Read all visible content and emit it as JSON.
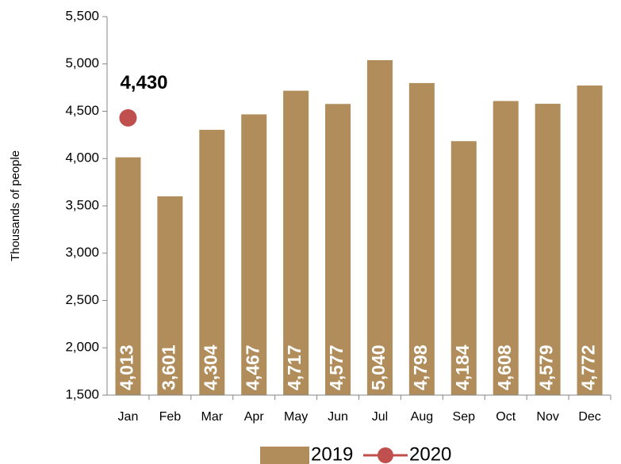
{
  "chart_data": {
    "type": "bar",
    "y_label": "Thousands of people",
    "categories": [
      "Jan",
      "Feb",
      "Mar",
      "Apr",
      "May",
      "Jun",
      "Jul",
      "Aug",
      "Sep",
      "Oct",
      "Nov",
      "Dec"
    ],
    "series": [
      {
        "name": "2019",
        "type": "bar",
        "color": "#b08d5a",
        "values": [
          4013,
          3601,
          4304,
          4467,
          4717,
          4577,
          5040,
          4798,
          4184,
          4608,
          4579,
          4772
        ],
        "value_labels": [
          "4,013",
          "3,601",
          "4,304",
          "4,467",
          "4,717",
          "4,577",
          "5,040",
          "4,798",
          "4,184",
          "4,608",
          "4,579",
          "4,772"
        ]
      },
      {
        "name": "2020",
        "type": "line",
        "color": "#c0504d",
        "values": [
          4430,
          null,
          null,
          null,
          null,
          null,
          null,
          null,
          null,
          null,
          null,
          null
        ],
        "value_labels": [
          "4,430",
          null,
          null,
          null,
          null,
          null,
          null,
          null,
          null,
          null,
          null,
          null
        ]
      }
    ],
    "ylim": [
      1500,
      5500
    ],
    "yticks": [
      {
        "value": 1500,
        "label": "1,500"
      },
      {
        "value": 2000,
        "label": "2,000"
      },
      {
        "value": 2500,
        "label": "2,500"
      },
      {
        "value": 3000,
        "label": "3,000"
      },
      {
        "value": 3500,
        "label": "3,500"
      },
      {
        "value": 4000,
        "label": "4,000"
      },
      {
        "value": 4500,
        "label": "4,500"
      },
      {
        "value": 5000,
        "label": "5,000"
      },
      {
        "value": 5500,
        "label": "5,500"
      }
    ],
    "legend": "bottom"
  }
}
